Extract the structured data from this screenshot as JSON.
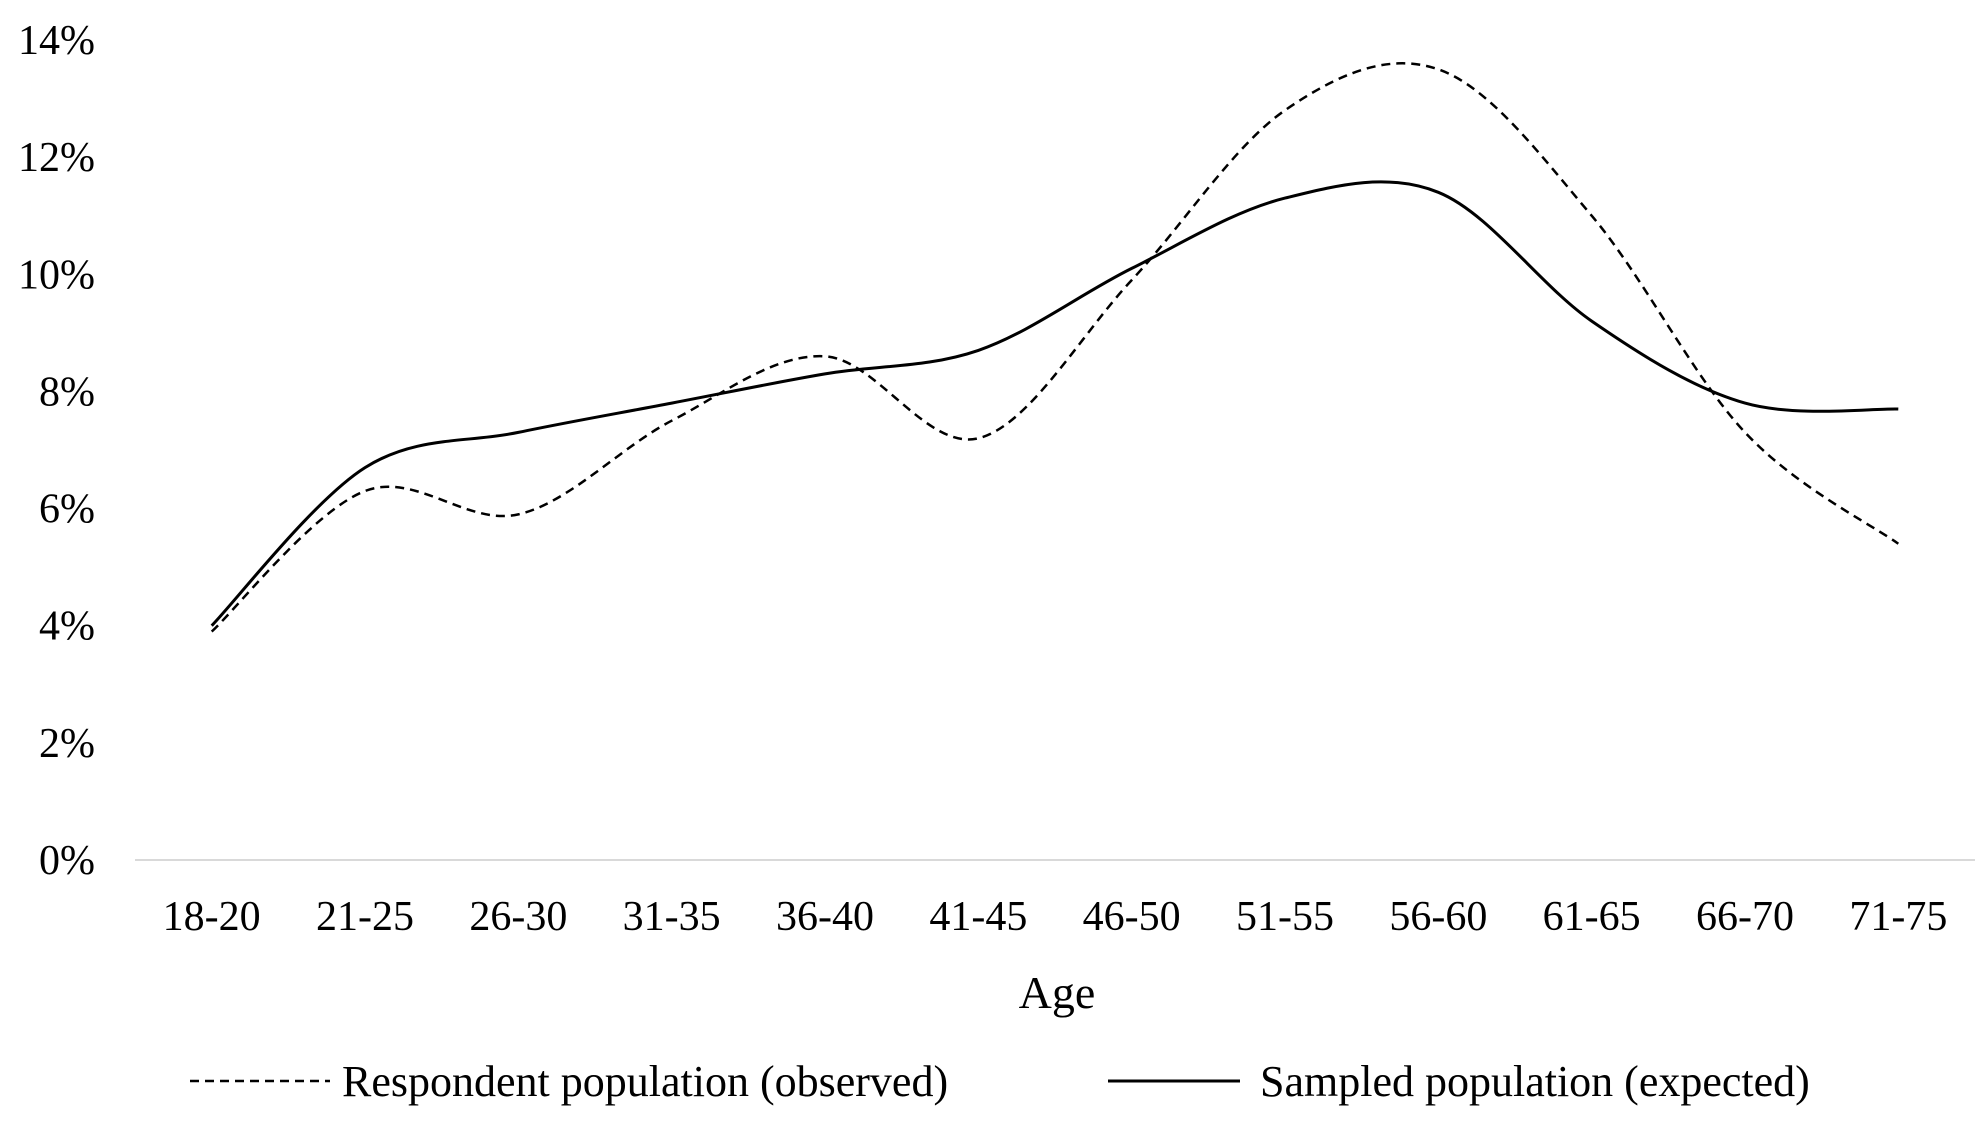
{
  "chart_data": {
    "type": "line",
    "title": "",
    "xlabel": "Age",
    "ylabel": "",
    "categories": [
      "18-20",
      "21-25",
      "26-30",
      "31-35",
      "36-40",
      "41-45",
      "46-50",
      "51-55",
      "56-60",
      "61-65",
      "66-70",
      "71-75"
    ],
    "y_ticks": [
      "0%",
      "2%",
      "4%",
      "6%",
      "8%",
      "10%",
      "12%",
      "14%"
    ],
    "ylim": [
      0,
      14
    ],
    "y_unit": "%",
    "grid": false,
    "smooth": true,
    "legend_position": "bottom",
    "series": [
      {
        "name": "Respondent population (observed)",
        "style": "dashed",
        "color": "#000000",
        "values": [
          3.9,
          6.3,
          5.9,
          7.5,
          8.6,
          7.2,
          9.9,
          12.8,
          13.5,
          11.0,
          7.3,
          5.4
        ]
      },
      {
        "name": "Sampled population (expected)",
        "style": "solid",
        "color": "#000000",
        "values": [
          4.0,
          6.7,
          7.3,
          7.8,
          8.3,
          8.7,
          10.1,
          11.3,
          11.4,
          9.2,
          7.8,
          7.7
        ]
      }
    ]
  }
}
